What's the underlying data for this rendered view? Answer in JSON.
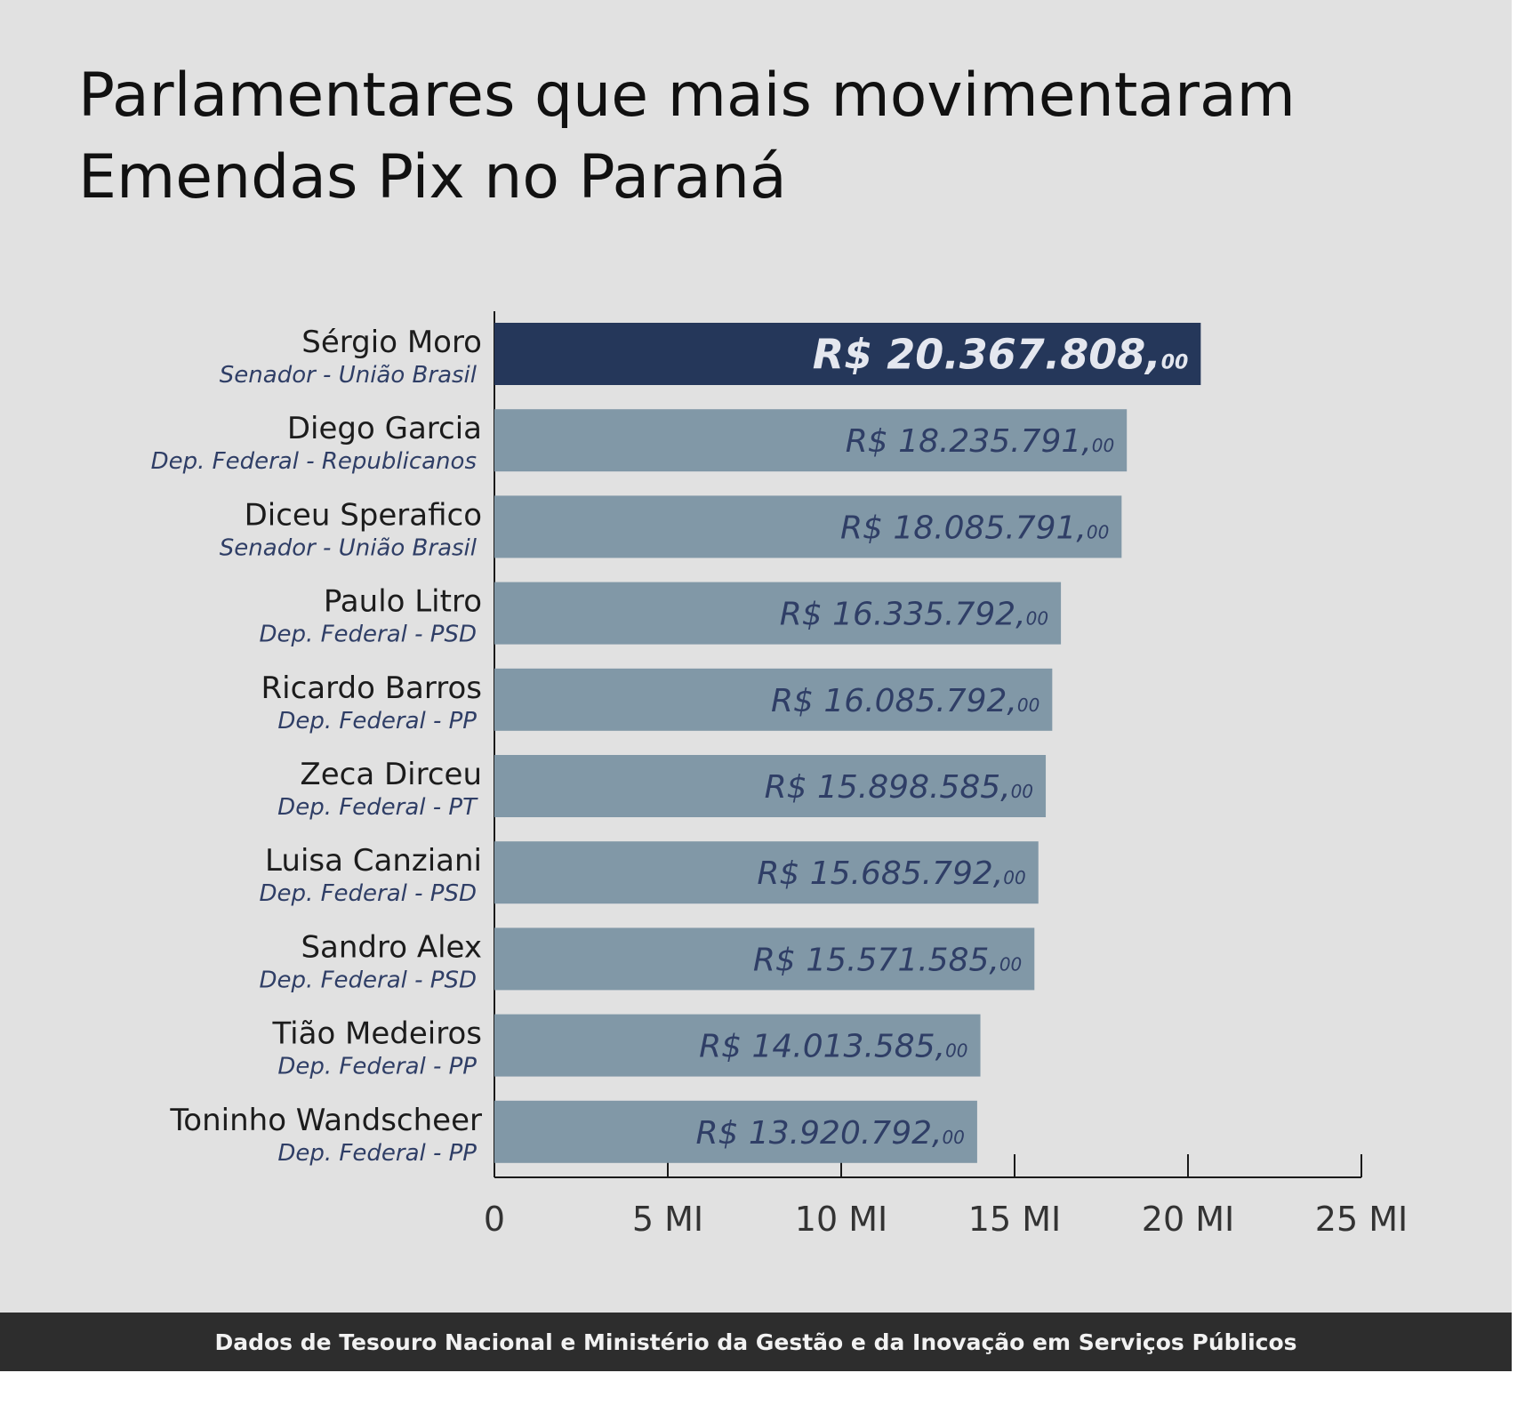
{
  "title": "Parlamentares que mais movimentaram\nEmendas Pix no Paraná",
  "footer": "Dados de Tesouro Nacional e Ministério da Gestão e da Inovação em Serviços Públicos",
  "colors": {
    "highlight_bar": "#25375a",
    "highlight_label": "#e4e7ef",
    "bar": "#8198a7",
    "label": "#2f3e66",
    "axis": "#1a1a1a",
    "footer_bg": "#2d2d2d"
  },
  "chart_data": {
    "type": "bar",
    "orientation": "horizontal",
    "title": "Parlamentares que mais movimentaram Emendas Pix no Paraná",
    "xlim": [
      0,
      25000000
    ],
    "ticks": [
      {
        "value": 0,
        "label": "0"
      },
      {
        "value": 5000000,
        "label": "5 MI"
      },
      {
        "value": 10000000,
        "label": "10 MI"
      },
      {
        "value": 15000000,
        "label": "15 MI"
      },
      {
        "value": 20000000,
        "label": "20 MI"
      },
      {
        "value": 25000000,
        "label": "25 MI"
      }
    ],
    "grid": false,
    "items": [
      {
        "name": "Sérgio Moro",
        "role": "Senador - União Brasil",
        "value": 20367808,
        "label_main": "R$ 20.367.808,",
        "label_cents": "00",
        "highlight": true
      },
      {
        "name": "Diego Garcia",
        "role": "Dep. Federal - Republicanos",
        "value": 18235791,
        "label_main": "R$ 18.235.791,",
        "label_cents": "00",
        "highlight": false
      },
      {
        "name": "Diceu Sperafico",
        "role": "Senador - União Brasil",
        "value": 18085791,
        "label_main": "R$ 18.085.791,",
        "label_cents": "00",
        "highlight": false
      },
      {
        "name": "Paulo Litro",
        "role": "Dep. Federal - PSD",
        "value": 16335792,
        "label_main": "R$ 16.335.792,",
        "label_cents": "00",
        "highlight": false
      },
      {
        "name": "Ricardo Barros",
        "role": "Dep. Federal - PP",
        "value": 16085792,
        "label_main": "R$ 16.085.792,",
        "label_cents": "00",
        "highlight": false
      },
      {
        "name": "Zeca Dirceu",
        "role": "Dep. Federal - PT",
        "value": 15898585,
        "label_main": "R$ 15.898.585,",
        "label_cents": "00",
        "highlight": false
      },
      {
        "name": "Luisa Canziani",
        "role": "Dep. Federal - PSD",
        "value": 15685792,
        "label_main": "R$ 15.685.792,",
        "label_cents": "00",
        "highlight": false
      },
      {
        "name": "Sandro Alex",
        "role": "Dep. Federal - PSD",
        "value": 15571585,
        "label_main": "R$ 15.571.585,",
        "label_cents": "00",
        "highlight": false
      },
      {
        "name": "Tião Medeiros",
        "role": "Dep. Federal - PP",
        "value": 14013585,
        "label_main": "R$ 14.013.585,",
        "label_cents": "00",
        "highlight": false
      },
      {
        "name": "Toninho Wandscheer",
        "role": "Dep. Federal - PP",
        "value": 13920792,
        "label_main": "R$ 13.920.792,",
        "label_cents": "00",
        "highlight": false
      }
    ]
  }
}
